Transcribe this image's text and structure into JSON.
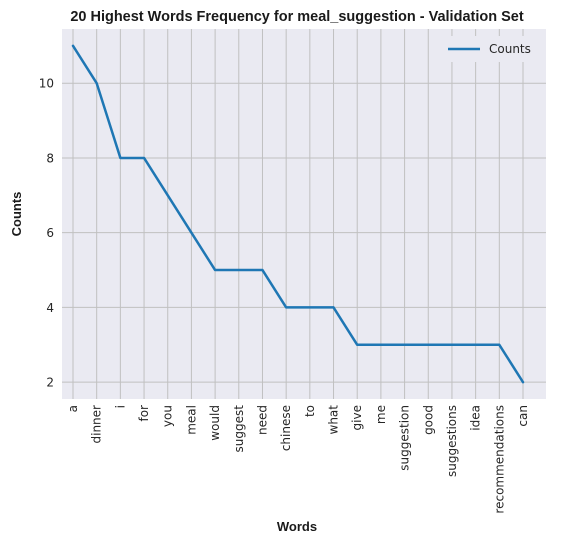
{
  "chart_data": {
    "type": "line",
    "title": "20 Highest Words Frequency for meal_suggestion - Validation Set",
    "xlabel": "Words",
    "ylabel": "Counts",
    "categories": [
      "a",
      "dinner",
      "i",
      "for",
      "you",
      "meal",
      "would",
      "suggest",
      "need",
      "chinese",
      "to",
      "what",
      "give",
      "me",
      "suggestion",
      "good",
      "suggestions",
      "idea",
      "recommendations",
      "can"
    ],
    "series": [
      {
        "name": "Counts",
        "values": [
          11,
          10,
          8,
          8,
          7,
          6,
          5,
          5,
          5,
          4,
          4,
          4,
          3,
          3,
          3,
          3,
          3,
          3,
          3,
          2
        ]
      }
    ],
    "ylim": [
      1.55,
      11.45
    ],
    "yticks": [
      2,
      4,
      6,
      8,
      10
    ],
    "grid": true,
    "legend_position": "top-right",
    "colors": {
      "line": "#1f77b4",
      "plot_bg": "#eaeaf2",
      "grid": "#c0c0c0"
    }
  }
}
